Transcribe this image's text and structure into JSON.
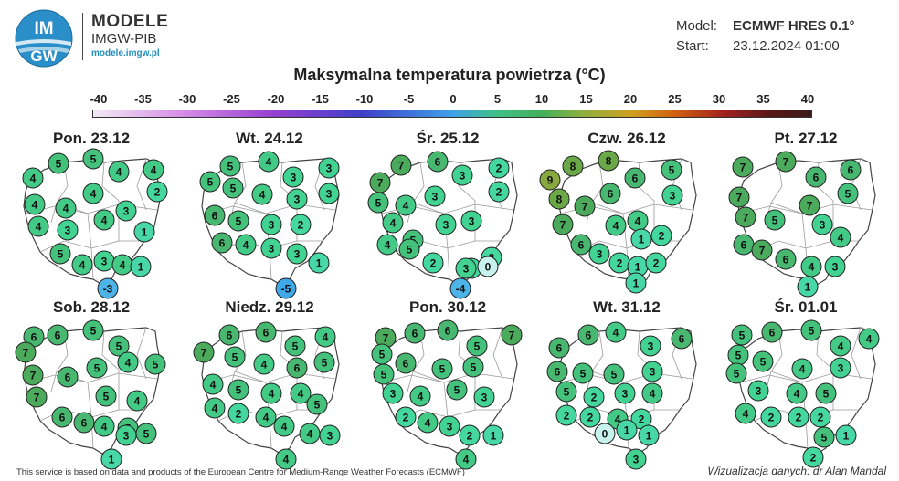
{
  "header": {
    "logo_text_top": "IM",
    "logo_text_bottom": "GW",
    "brand_line1": "MODELE",
    "brand_line2": "IMGW-PIB",
    "brand_url": "modele.imgw.pl",
    "model_label": "Model:",
    "model_value": "ECMWF HRES 0.1°",
    "start_label": "Start:",
    "start_value": "23.12.2024 01:00"
  },
  "title": "Maksymalna temperatura powietrza (°C)",
  "colorbar": {
    "ticks": [
      "-40",
      "-35",
      "-30",
      "-25",
      "-20",
      "-15",
      "-10",
      "-5",
      "0",
      "5",
      "10",
      "15",
      "20",
      "25",
      "30",
      "35",
      "40"
    ]
  },
  "panels": [
    {
      "title": "Pon. 23.12",
      "values": [
        "4",
        "5",
        "5",
        "4",
        "4",
        "2",
        "4",
        "4",
        "4",
        "4",
        "3",
        "4",
        "3",
        "1",
        "5",
        "4",
        "3",
        "4",
        "1",
        "-3"
      ]
    },
    {
      "title": "Wt. 24.12",
      "values": [
        "5",
        "4",
        "3",
        "3",
        "5",
        "5",
        "4",
        "3",
        "3",
        "6",
        "5",
        "3",
        "2",
        "6",
        "4",
        "3",
        "3",
        "1",
        "-5"
      ]
    },
    {
      "title": "Śr. 25.12",
      "values": [
        "7",
        "7",
        "6",
        "3",
        "2",
        "5",
        "4",
        "3",
        "2",
        "4",
        "5",
        "3",
        "3",
        "4",
        "5",
        "2",
        "2",
        "2",
        "3",
        "0",
        "-4"
      ]
    },
    {
      "title": "Czw. 26.12",
      "values": [
        "8",
        "8",
        "9",
        "6",
        "5",
        "8",
        "7",
        "6",
        "3",
        "7",
        "4",
        "4",
        "6",
        "1",
        "2",
        "3",
        "2",
        "1",
        "2",
        "1"
      ]
    },
    {
      "title": "Pt. 27.12",
      "values": [
        "7",
        "7",
        "6",
        "6",
        "7",
        "5",
        "7",
        "5",
        "7",
        "6",
        "3",
        "4",
        "7",
        "6",
        "4",
        "3",
        "1"
      ]
    },
    {
      "title": "Sob. 28.12",
      "values": [
        "6",
        "6",
        "5",
        "5",
        "7",
        "5",
        "7",
        "6",
        "5",
        "4",
        "7",
        "5",
        "4",
        "5",
        "6",
        "6",
        "4",
        "3",
        "5",
        "1"
      ]
    },
    {
      "title": "Niedz. 29.12",
      "values": [
        "6",
        "6",
        "5",
        "4",
        "7",
        "5",
        "4",
        "6",
        "5",
        "4",
        "5",
        "4",
        "4",
        "5",
        "4",
        "2",
        "4",
        "4",
        "4",
        "3",
        "4"
      ]
    },
    {
      "title": "Pon. 30.12",
      "values": [
        "7",
        "6",
        "6",
        "5",
        "7",
        "5",
        "6",
        "5",
        "5",
        "5",
        "3",
        "4",
        "5",
        "3",
        "2",
        "4",
        "3",
        "2",
        "1",
        "4"
      ]
    },
    {
      "title": "Wt. 31.12",
      "values": [
        "6",
        "6",
        "4",
        "3",
        "6",
        "6",
        "5",
        "5",
        "3",
        "5",
        "2",
        "3",
        "4",
        "2",
        "2",
        "4",
        "2",
        "0",
        "1",
        "1",
        "3"
      ]
    },
    {
      "title": "Śr. 01.01",
      "values": [
        "5",
        "6",
        "5",
        "4",
        "4",
        "5",
        "5",
        "4",
        "3",
        "5",
        "3",
        "4",
        "5",
        "4",
        "2",
        "2",
        "2",
        "5",
        "1",
        "2"
      ]
    }
  ],
  "colors": {
    "temp_neg5": "#3fa8e8",
    "temp_neg3": "#4cb4e6",
    "temp_0": "#c8f2ee",
    "temp_1": "#48d8a8",
    "temp_2": "#44d89e",
    "temp_3": "#42d292",
    "temp_4": "#42ca86",
    "temp_5": "#44c27c",
    "temp_6": "#48b870",
    "temp_7": "#4caa5c",
    "temp_8": "#6aa848",
    "temp_9": "#88a840"
  },
  "footer": {
    "left": "This service is based on data and products of the European Centre for Medium-Range Weather Forecasts (ECMWF)",
    "right": "Wizualizacja danych: dr Alan Mandal"
  }
}
